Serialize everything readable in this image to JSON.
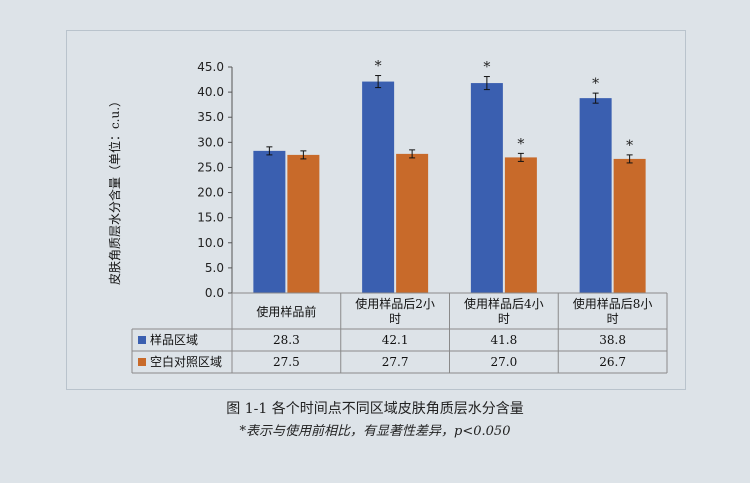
{
  "chart_data": {
    "type": "bar",
    "ylabel": "皮肤角质层水分含量（单位：c.u.）",
    "ylim": [
      0,
      45
    ],
    "yticks": [
      "0.0",
      "5.0",
      "10.0",
      "15.0",
      "20.0",
      "25.0",
      "30.0",
      "35.0",
      "40.0",
      "45.0"
    ],
    "categories": [
      [
        "使用样品前"
      ],
      [
        "使用样品后2小",
        "时"
      ],
      [
        "使用样品后4小",
        "时"
      ],
      [
        "使用样品后8小",
        "时"
      ]
    ],
    "series": [
      {
        "name": "样品区域",
        "color": "#3a5fb0",
        "values": [
          28.3,
          42.1,
          41.8,
          38.8
        ],
        "labels": [
          "28.3",
          "42.1",
          "41.8",
          "38.8"
        ],
        "errors": [
          0.8,
          1.2,
          1.3,
          1.0
        ],
        "stars": [
          false,
          true,
          true,
          true
        ]
      },
      {
        "name": "空白对照区域",
        "color": "#c86a2a",
        "values": [
          27.5,
          27.7,
          27.0,
          26.7
        ],
        "labels": [
          "27.5",
          "27.7",
          "27.0",
          "26.7"
        ],
        "errors": [
          0.8,
          0.8,
          0.8,
          0.8
        ],
        "stars": [
          false,
          false,
          true,
          true
        ]
      }
    ],
    "star_symbol": "*",
    "grid": false
  },
  "caption": "图 1-1  各个时间点不同区域皮肤角质层水分含量",
  "note": "*表示与使用前相比，有显著性差异，p<0.050"
}
